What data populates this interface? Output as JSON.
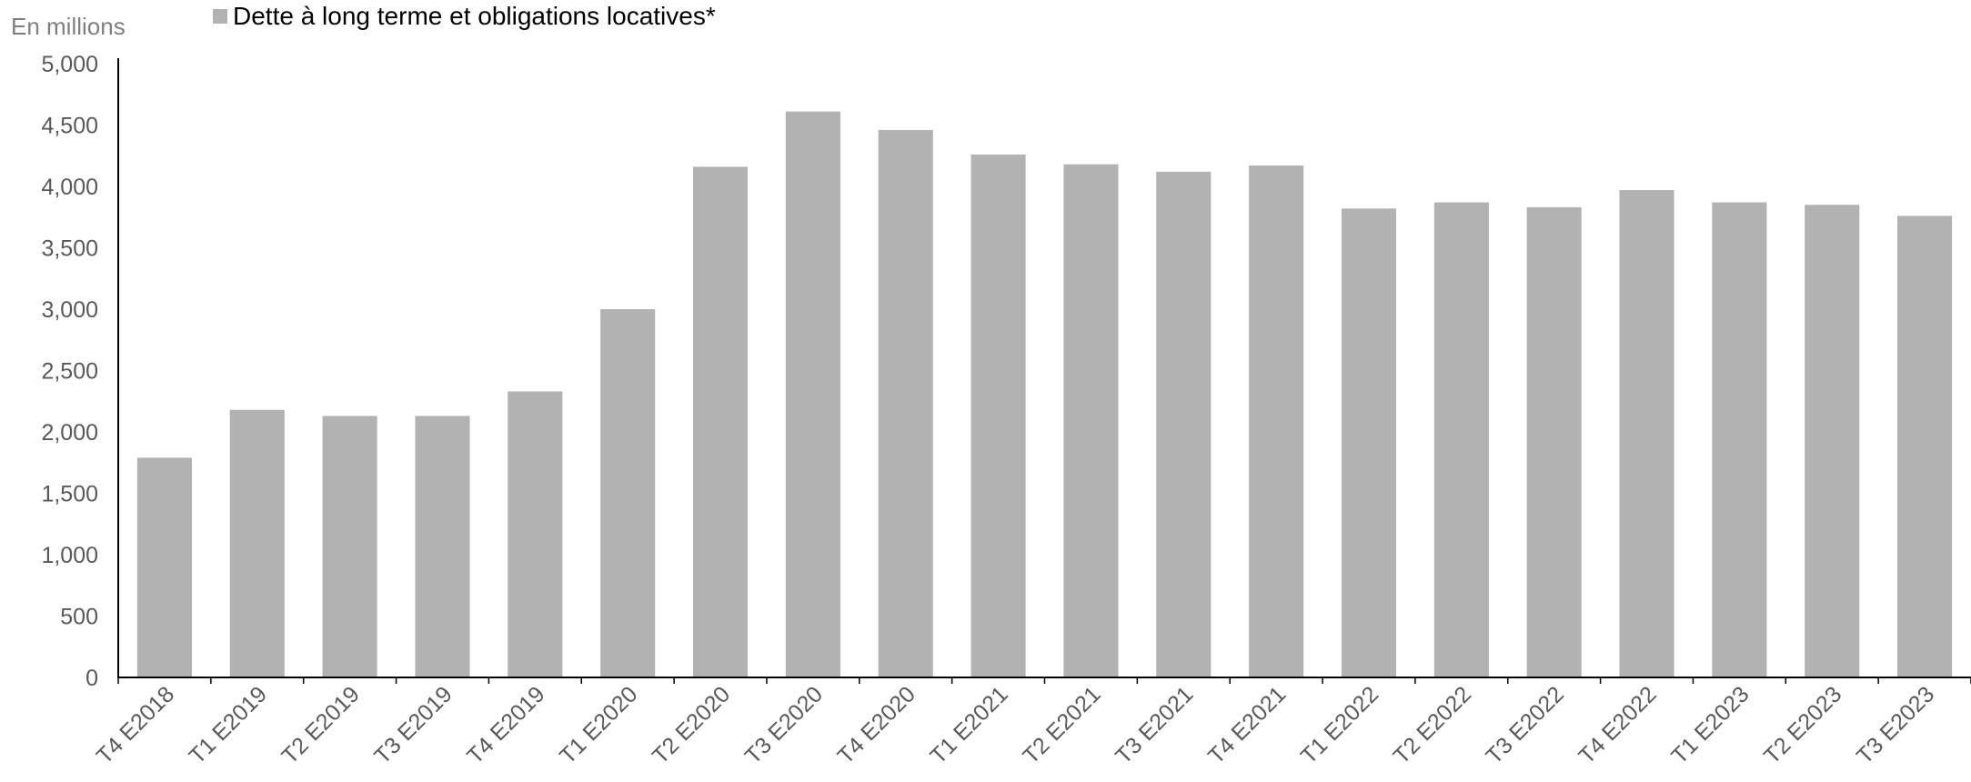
{
  "chart_data": {
    "type": "bar",
    "ylabel": "En millions",
    "ylim": [
      0,
      5000
    ],
    "yticks": [
      "0",
      "500",
      "1,000",
      "1,500",
      "2,000",
      "2,500",
      "3,000",
      "3,500",
      "4,000",
      "4,500",
      "5,000"
    ],
    "ytick_values": [
      0,
      500,
      1000,
      1500,
      2000,
      2500,
      3000,
      3500,
      4000,
      4500,
      5000
    ],
    "grid": false,
    "legend_position": "top-left",
    "categories": [
      "T4 E2018",
      "T1 E2019",
      "T2 E2019",
      "T3 E2019",
      "T4 E2019",
      "T1 E2020",
      "T2 E2020",
      "T3 E2020",
      "T4 E2020",
      "T1 E2021",
      "T2 E2021",
      "T3 E2021",
      "T4 E2021",
      "T1 E2022",
      "T2 E2022",
      "T3 E2022",
      "T4 E2022",
      "T1 E2023",
      "T2 E2023",
      "T3 E2023"
    ],
    "series": [
      {
        "name": "Dette à long terme et obligations locatives*",
        "color": "#b2b2b2",
        "values": [
          1790,
          2180,
          2130,
          2130,
          2330,
          3000,
          4160,
          4610,
          4460,
          4260,
          4180,
          4120,
          4170,
          3820,
          3870,
          3830,
          3970,
          3870,
          3850,
          3760
        ]
      }
    ]
  }
}
